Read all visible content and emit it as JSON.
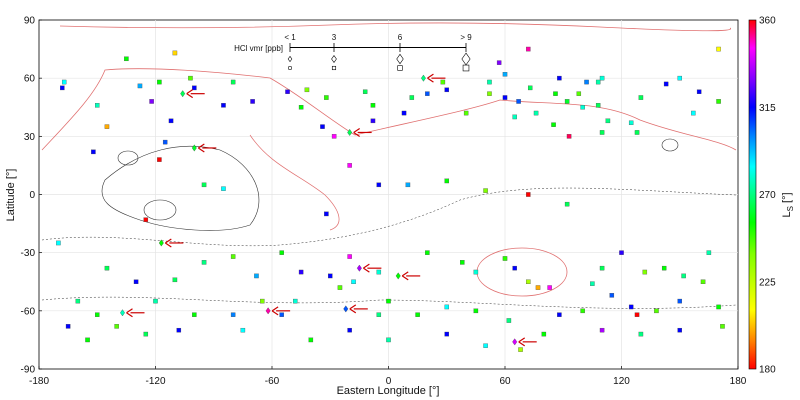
{
  "chart_data": {
    "type": "scatter",
    "title": "",
    "xlabel": "Eastern Longitude [°]",
    "ylabel": "Latitude [°]",
    "xlim": [
      -180,
      180
    ],
    "ylim": [
      -90,
      90
    ],
    "xticks": [
      "-180",
      "-120",
      "-60",
      "0",
      "60",
      "120",
      "180"
    ],
    "yticks": [
      "90",
      "60",
      "30",
      "0",
      "-30",
      "-60",
      "-90"
    ],
    "grid": true,
    "colorbar": {
      "label": "L",
      "label_sub": "S",
      "label_unit": " [°]",
      "range": [
        180,
        360
      ],
      "ticks": [
        "360",
        "315",
        "270",
        "225",
        "180"
      ]
    },
    "size_legend": {
      "label": "HCl vmr [ppb]",
      "tick_labels": [
        "< 1",
        "3",
        "6",
        "> 9"
      ],
      "values": [
        1,
        3,
        6,
        9
      ],
      "placement": "top-center"
    },
    "colors": {
      "arrow": "#cc0000",
      "contour_lowland": "#e07070",
      "contour_highland": "#333333"
    },
    "detections": [
      {
        "lon": -106,
        "lat": 52,
        "ls": 250
      },
      {
        "lon": -100,
        "lat": 24,
        "ls": 245
      },
      {
        "lon": -117,
        "lat": -25,
        "ls": 240
      },
      {
        "lon": -137,
        "lat": -61,
        "ls": 262
      },
      {
        "lon": -62,
        "lat": -60,
        "ls": 340
      },
      {
        "lon": -20,
        "lat": 32,
        "ls": 250
      },
      {
        "lon": -15,
        "lat": -38,
        "ls": 320
      },
      {
        "lon": 5,
        "lat": -42,
        "ls": 240
      },
      {
        "lon": -22,
        "lat": -59,
        "ls": 290
      },
      {
        "lon": 18,
        "lat": 60,
        "ls": 255
      },
      {
        "lon": 65,
        "lat": -76,
        "ls": 325
      }
    ],
    "non_detections": [
      {
        "lon": -168,
        "lat": 55,
        "ls": 300
      },
      {
        "lon": -167,
        "lat": 58,
        "ls": 270
      },
      {
        "lon": -150,
        "lat": 46,
        "ls": 262
      },
      {
        "lon": -145,
        "lat": 35,
        "ls": 200
      },
      {
        "lon": -152,
        "lat": 22,
        "ls": 300
      },
      {
        "lon": -128,
        "lat": 56,
        "ls": 280
      },
      {
        "lon": -122,
        "lat": 48,
        "ls": 315
      },
      {
        "lon": -135,
        "lat": 70,
        "ls": 240
      },
      {
        "lon": -118,
        "lat": 58,
        "ls": 240
      },
      {
        "lon": -112,
        "lat": 38,
        "ls": 300
      },
      {
        "lon": -115,
        "lat": 27,
        "ls": 290
      },
      {
        "lon": -110,
        "lat": 73,
        "ls": 205
      },
      {
        "lon": -100,
        "lat": 55,
        "ls": 300
      },
      {
        "lon": -80,
        "lat": 58,
        "ls": 250
      },
      {
        "lon": -70,
        "lat": 48,
        "ls": 305
      },
      {
        "lon": -52,
        "lat": 53,
        "ls": 305
      },
      {
        "lon": -45,
        "lat": 45,
        "ls": 240
      },
      {
        "lon": -32,
        "lat": 50,
        "ls": 235
      },
      {
        "lon": -12,
        "lat": 53,
        "ls": 250
      },
      {
        "lon": -8,
        "lat": 46,
        "ls": 240
      },
      {
        "lon": -8,
        "lat": 38,
        "ls": 305
      },
      {
        "lon": -28,
        "lat": 30,
        "ls": 330
      },
      {
        "lon": -42,
        "lat": 54,
        "ls": 225
      },
      {
        "lon": 8,
        "lat": 42,
        "ls": 300
      },
      {
        "lon": 12,
        "lat": 50,
        "ls": 250
      },
      {
        "lon": 20,
        "lat": 52,
        "ls": 290
      },
      {
        "lon": 28,
        "lat": 58,
        "ls": 230
      },
      {
        "lon": 30,
        "lat": 54,
        "ls": 300
      },
      {
        "lon": 40,
        "lat": 42,
        "ls": 230
      },
      {
        "lon": 52,
        "lat": 52,
        "ls": 225
      },
      {
        "lon": 52,
        "lat": 58,
        "ls": 260
      },
      {
        "lon": 60,
        "lat": 62,
        "ls": 280
      },
      {
        "lon": 60,
        "lat": 50,
        "ls": 300
      },
      {
        "lon": 65,
        "lat": 40,
        "ls": 262
      },
      {
        "lon": 72,
        "lat": 75,
        "ls": 340
      },
      {
        "lon": 73,
        "lat": 55,
        "ls": 250
      },
      {
        "lon": 88,
        "lat": 60,
        "ls": 300
      },
      {
        "lon": 86,
        "lat": 52,
        "ls": 240
      },
      {
        "lon": 92,
        "lat": 48,
        "ls": 245
      },
      {
        "lon": 98,
        "lat": 52,
        "ls": 230
      },
      {
        "lon": 102,
        "lat": 58,
        "ls": 285
      },
      {
        "lon": 108,
        "lat": 58,
        "ls": 260
      },
      {
        "lon": 100,
        "lat": 45,
        "ls": 265
      },
      {
        "lon": 110,
        "lat": 60,
        "ls": 265
      },
      {
        "lon": 125,
        "lat": 37,
        "ls": 265
      },
      {
        "lon": 113,
        "lat": 38,
        "ls": 255
      },
      {
        "lon": 108,
        "lat": 46,
        "ls": 250
      },
      {
        "lon": 85,
        "lat": 36,
        "ls": 240
      },
      {
        "lon": 93,
        "lat": 30,
        "ls": 350
      },
      {
        "lon": 143,
        "lat": 57,
        "ls": 300
      },
      {
        "lon": 150,
        "lat": 60,
        "ls": 270
      },
      {
        "lon": 160,
        "lat": 53,
        "ls": 300
      },
      {
        "lon": 170,
        "lat": 48,
        "ls": 235
      },
      {
        "lon": 157,
        "lat": 42,
        "ls": 270
      },
      {
        "lon": 170,
        "lat": 75,
        "ls": 210
      },
      {
        "lon": 57,
        "lat": 68,
        "ls": 315
      },
      {
        "lon": 67,
        "lat": 48,
        "ls": 290
      },
      {
        "lon": -34,
        "lat": 35,
        "ls": 300
      },
      {
        "lon": -85,
        "lat": 46,
        "ls": 300
      },
      {
        "lon": -102,
        "lat": 60,
        "ls": 230
      },
      {
        "lon": 76,
        "lat": 42,
        "ls": 260
      },
      {
        "lon": 130,
        "lat": 50,
        "ls": 250
      },
      {
        "lon": 110,
        "lat": 32,
        "ls": 250
      },
      {
        "lon": 128,
        "lat": 32,
        "ls": 250
      },
      {
        "lon": -118,
        "lat": 18,
        "ls": 360
      },
      {
        "lon": -95,
        "lat": 5,
        "ls": 250
      },
      {
        "lon": -85,
        "lat": 3,
        "ls": 270
      },
      {
        "lon": -20,
        "lat": 15,
        "ls": 330
      },
      {
        "lon": 10,
        "lat": 5,
        "ls": 280
      },
      {
        "lon": 30,
        "lat": 7,
        "ls": 240
      },
      {
        "lon": 50,
        "lat": 2,
        "ls": 225
      },
      {
        "lon": 72,
        "lat": 0,
        "ls": 360
      },
      {
        "lon": 92,
        "lat": -5,
        "ls": 250
      },
      {
        "lon": -5,
        "lat": 5,
        "ls": 300
      },
      {
        "lon": -32,
        "lat": -10,
        "ls": 300
      },
      {
        "lon": -125,
        "lat": -13,
        "ls": 360
      },
      {
        "lon": -170,
        "lat": -25,
        "ls": 270
      },
      {
        "lon": -145,
        "lat": -38,
        "ls": 250
      },
      {
        "lon": -95,
        "lat": -35,
        "ls": 255
      },
      {
        "lon": -80,
        "lat": -32,
        "ls": 230
      },
      {
        "lon": -68,
        "lat": -42,
        "ls": 280
      },
      {
        "lon": -55,
        "lat": -30,
        "ls": 240
      },
      {
        "lon": -30,
        "lat": -42,
        "ls": 300
      },
      {
        "lon": -18,
        "lat": -45,
        "ls": 270
      },
      {
        "lon": -5,
        "lat": -40,
        "ls": 265
      },
      {
        "lon": 20,
        "lat": -30,
        "ls": 240
      },
      {
        "lon": 38,
        "lat": -35,
        "ls": 240
      },
      {
        "lon": 45,
        "lat": -40,
        "ls": 265
      },
      {
        "lon": 60,
        "lat": -33,
        "ls": 235
      },
      {
        "lon": 65,
        "lat": -38,
        "ls": 300
      },
      {
        "lon": 72,
        "lat": -45,
        "ls": 220
      },
      {
        "lon": 77,
        "lat": -48,
        "ls": 200
      },
      {
        "lon": 83,
        "lat": -48,
        "ls": 330
      },
      {
        "lon": 120,
        "lat": -30,
        "ls": 305
      },
      {
        "lon": 132,
        "lat": -40,
        "ls": 225
      },
      {
        "lon": 142,
        "lat": -38,
        "ls": 240
      },
      {
        "lon": 152,
        "lat": -42,
        "ls": 255
      },
      {
        "lon": 162,
        "lat": -45,
        "ls": 230
      },
      {
        "lon": 150,
        "lat": -55,
        "ls": 290
      },
      {
        "lon": 138,
        "lat": -60,
        "ls": 230
      },
      {
        "lon": 115,
        "lat": -52,
        "ls": 290
      },
      {
        "lon": 105,
        "lat": -46,
        "ls": 260
      },
      {
        "lon": 100,
        "lat": -60,
        "ls": 235
      },
      {
        "lon": 88,
        "lat": -62,
        "ls": 300
      },
      {
        "lon": 110,
        "lat": -70,
        "ls": 320
      },
      {
        "lon": 125,
        "lat": -58,
        "ls": 300
      },
      {
        "lon": 128,
        "lat": -62,
        "ls": 360
      },
      {
        "lon": 172,
        "lat": -68,
        "ls": 230
      },
      {
        "lon": 30,
        "lat": -58,
        "ls": 270
      },
      {
        "lon": 45,
        "lat": -60,
        "ls": 240
      },
      {
        "lon": 62,
        "lat": -65,
        "ls": 255
      },
      {
        "lon": 15,
        "lat": -62,
        "ls": 240
      },
      {
        "lon": 0,
        "lat": -55,
        "ls": 240
      },
      {
        "lon": -5,
        "lat": -62,
        "ls": 255
      },
      {
        "lon": -25,
        "lat": -48,
        "ls": 230
      },
      {
        "lon": -48,
        "lat": -55,
        "ls": 265
      },
      {
        "lon": -55,
        "lat": -62,
        "ls": 290
      },
      {
        "lon": -65,
        "lat": -55,
        "ls": 225
      },
      {
        "lon": -80,
        "lat": -62,
        "ls": 285
      },
      {
        "lon": -100,
        "lat": -62,
        "ls": 240
      },
      {
        "lon": -108,
        "lat": -70,
        "ls": 300
      },
      {
        "lon": -120,
        "lat": -55,
        "ls": 260
      },
      {
        "lon": -150,
        "lat": -62,
        "ls": 240
      },
      {
        "lon": -160,
        "lat": -55,
        "ls": 255
      },
      {
        "lon": -165,
        "lat": -68,
        "ls": 300
      },
      {
        "lon": -140,
        "lat": -68,
        "ls": 230
      },
      {
        "lon": -125,
        "lat": -72,
        "ls": 250
      },
      {
        "lon": -75,
        "lat": -70,
        "ls": 270
      },
      {
        "lon": -40,
        "lat": -75,
        "ls": 240
      },
      {
        "lon": -20,
        "lat": -70,
        "ls": 300
      },
      {
        "lon": 0,
        "lat": -75,
        "ls": 260
      },
      {
        "lon": 30,
        "lat": -72,
        "ls": 300
      },
      {
        "lon": 50,
        "lat": -78,
        "ls": 270
      },
      {
        "lon": 80,
        "lat": -72,
        "ls": 240
      },
      {
        "lon": 130,
        "lat": -72,
        "ls": 255
      },
      {
        "lon": 150,
        "lat": -70,
        "ls": 300
      },
      {
        "lon": -110,
        "lat": -44,
        "ls": 250
      },
      {
        "lon": 170,
        "lat": -58,
        "ls": 240
      },
      {
        "lon": -20,
        "lat": -32,
        "ls": 330
      },
      {
        "lon": 68,
        "lat": -80,
        "ls": 220
      },
      {
        "lon": -155,
        "lat": -75,
        "ls": 240
      },
      {
        "lon": 110,
        "lat": -38,
        "ls": 250
      },
      {
        "lon": -45,
        "lat": -40,
        "ls": 305
      },
      {
        "lon": 165,
        "lat": -30,
        "ls": 260
      },
      {
        "lon": -130,
        "lat": -45,
        "ls": 300
      }
    ]
  }
}
